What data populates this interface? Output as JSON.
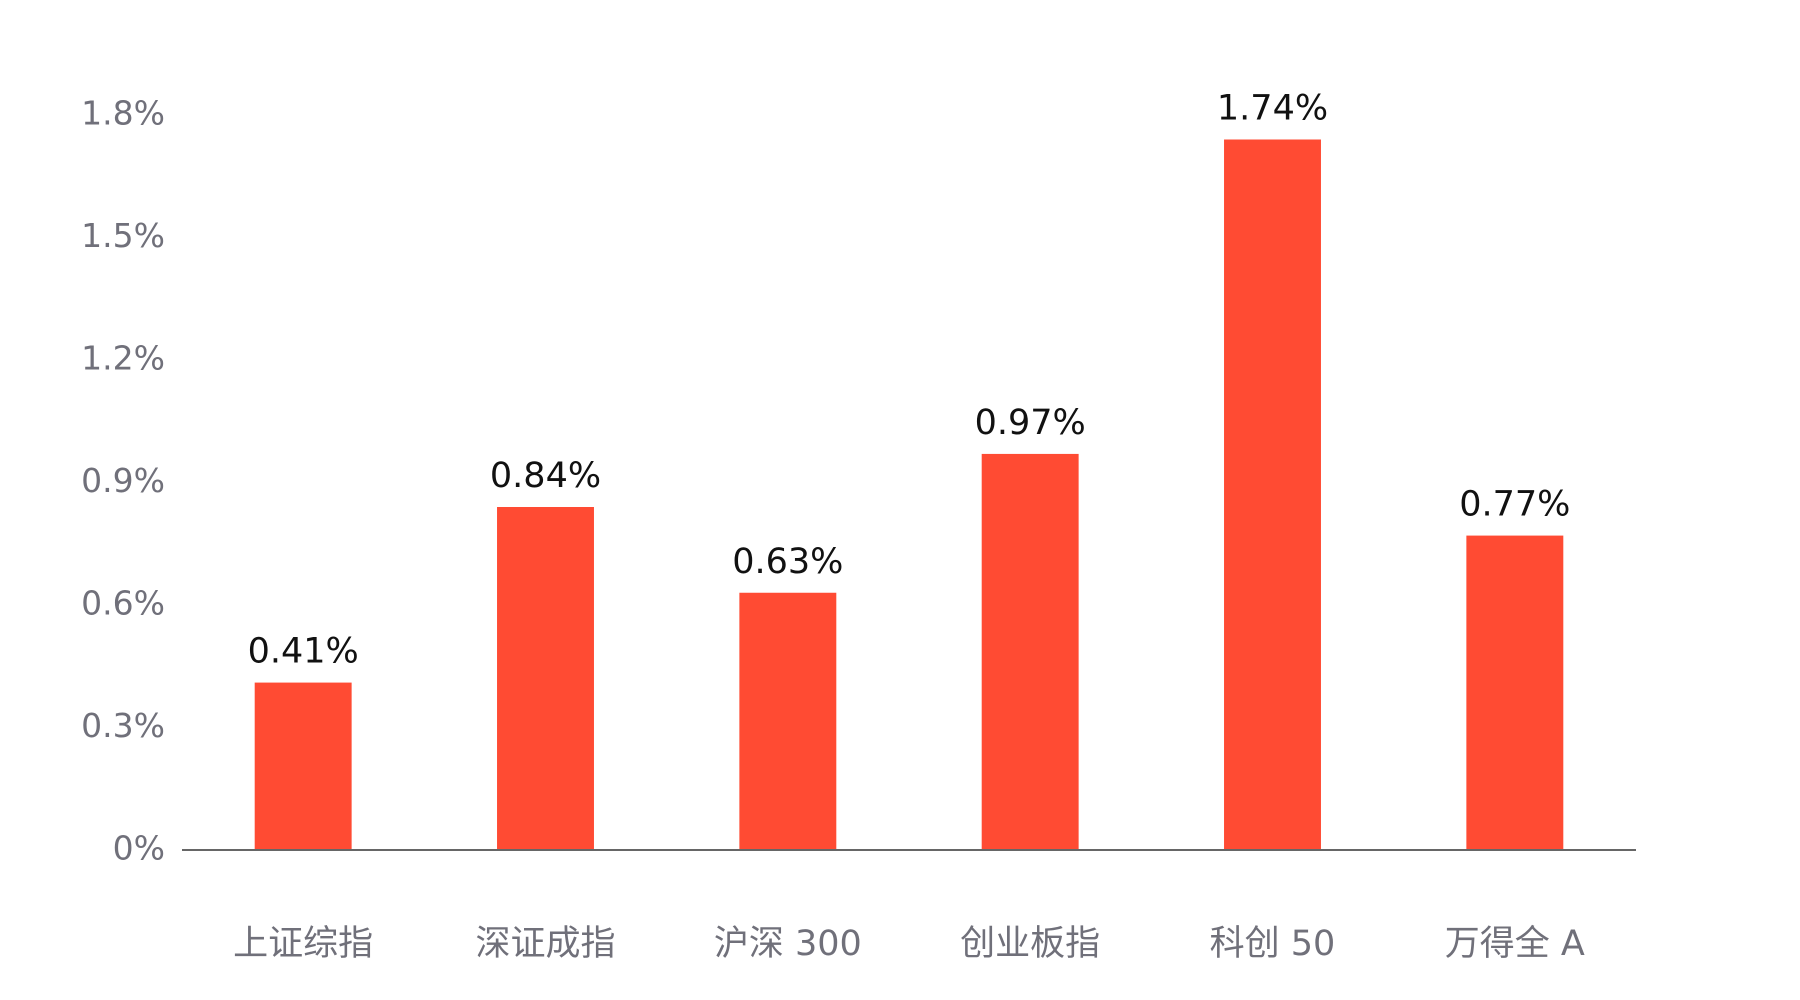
{
  "chart_data": {
    "type": "bar",
    "categories": [
      "上证综指",
      "深证成指",
      "沪深 300",
      "创业板指",
      "科创 50",
      "万得全 A"
    ],
    "values": [
      0.41,
      0.84,
      0.63,
      0.97,
      1.74,
      0.77
    ],
    "value_labels": [
      "0.41%",
      "0.84%",
      "0.63%",
      "0.97%",
      "1.74%",
      "0.77%"
    ],
    "color": "#ff4b33",
    "ylim": [
      0,
      1.8
    ],
    "yticks": [
      {
        "value": 0,
        "label": "0%"
      },
      {
        "value": 0.3,
        "label": "0.3%"
      },
      {
        "value": 0.6,
        "label": "0.6%"
      },
      {
        "value": 0.9,
        "label": "0.9%"
      },
      {
        "value": 1.2,
        "label": "1.2%"
      },
      {
        "value": 1.5,
        "label": "1.5%"
      },
      {
        "value": 1.8,
        "label": "1.8%"
      }
    ],
    "grid": false
  }
}
